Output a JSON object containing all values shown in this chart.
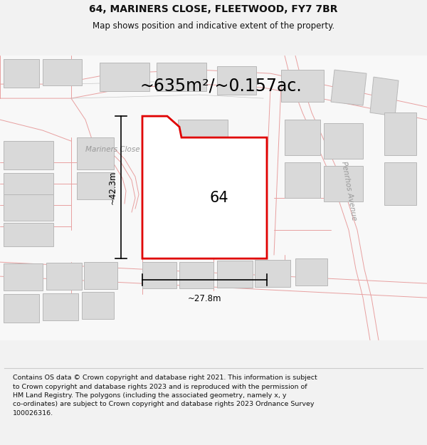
{
  "title_line1": "64, MARINERS CLOSE, FLEETWOOD, FY7 7BR",
  "title_line2": "Map shows position and indicative extent of the property.",
  "area_text": "~635m²/~0.157ac.",
  "label_64": "64",
  "dim_height": "~42.3m",
  "dim_width": "~27.8m",
  "street_label": "Mariners Close",
  "street_label2": "Penrhos Avenue",
  "footer_text": "Contains OS data © Crown copyright and database right 2021. This information is subject\nto Crown copyright and database rights 2023 and is reproduced with the permission of\nHM Land Registry. The polygons (including the associated geometry, namely x, y\nco-ordinates) are subject to Crown copyright and database rights 2023 Ordnance Survey\n100026316.",
  "bg_color": "#f2f2f2",
  "map_bg": "#f8f8f8",
  "building_fill": "#d9d9d9",
  "building_stroke": "#b8b8b8",
  "road_stroke": "#e8a0a0",
  "road_stroke2": "#c8c8c8",
  "highlight_stroke": "#e00000",
  "highlight_fill": "#ffffff",
  "dim_color": "#000000",
  "title_color": "#111111",
  "footer_color": "#111111",
  "title_fontsize": 10,
  "subtitle_fontsize": 8.5,
  "area_fontsize": 17,
  "label_fontsize": 15,
  "dim_fontsize": 8.5,
  "footer_fontsize": 6.8,
  "street_fontsize": 7.5
}
